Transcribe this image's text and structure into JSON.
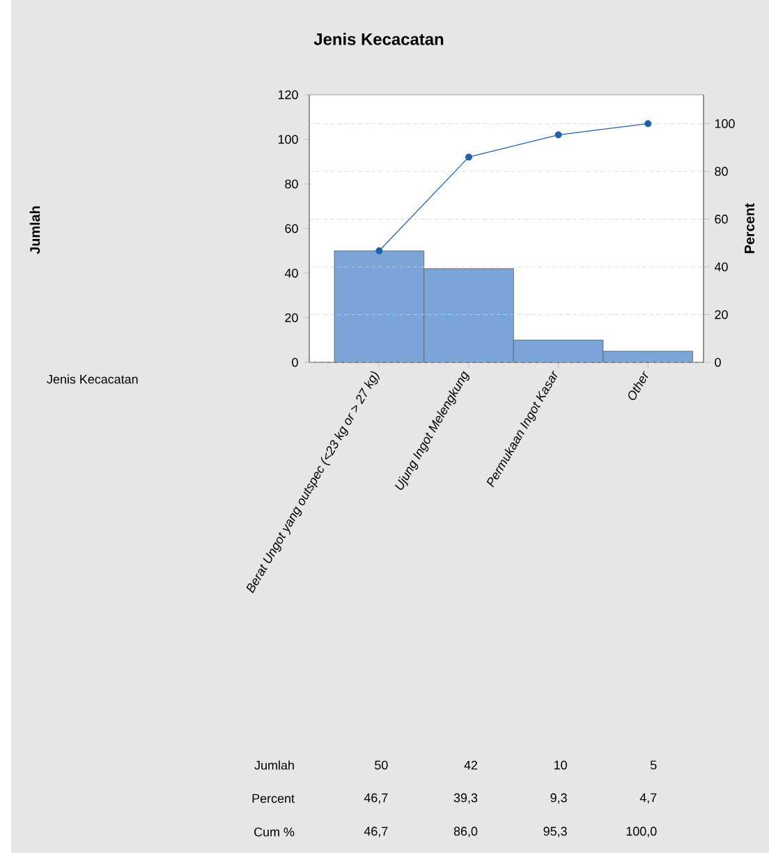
{
  "chart_data": {
    "type": "bar",
    "title": "Jenis Kecacatan",
    "y2label": "Percent",
    "categories": [
      "Berat Ungot yang outspec (<23 kg or > 27 kg)",
      "Ujung Ingot Melengkung",
      "Permukaan Ingot Kasar",
      "Other"
    ],
    "series": [
      {
        "color": "#7ba4d8",
        "values": [
          50,
          42,
          10,
          5
        ],
        "value_labels": [
          "50",
          "42",
          "10",
          "5"
        ]
      },
      {
        "type": "line",
        "axis": "y2",
        "color": "#1f5fa8",
        "marker": "circle",
        "values": [
          46.7,
          86.0,
          95.3,
          100.0
        ],
        "value_labels": [
          "46,7",
          "86,0",
          "95,3",
          "100,0"
        ]
      }
    ],
    "annotations": [
      "Jenis Kecacatan",
      "Jumlah",
      "Jumlah",
      "Percent",
      "Cum %",
      "46,7",
      "39,3",
      "9,3",
      "4,7"
    ],
    "ylim": [
      0,
      120
    ],
    "yticks": [
      0,
      20,
      40,
      60,
      80,
      100,
      120
    ],
    "y2lim": [
      0,
      112.1
    ],
    "y2ticks": [
      0,
      20,
      40,
      60,
      80,
      100
    ],
    "grid": "y2"
  }
}
